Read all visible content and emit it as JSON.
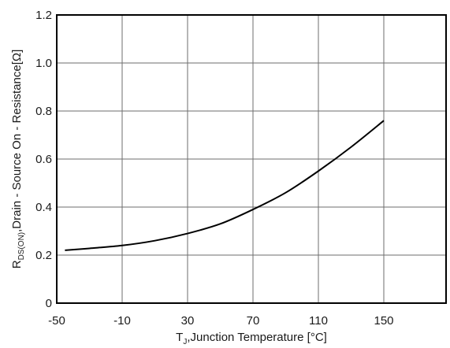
{
  "chart_data": {
    "type": "line",
    "xlabel": {
      "prefix": "T",
      "sub": "J",
      "rest": ",Junction Temperature [°C]"
    },
    "ylabel": {
      "prefix": "R",
      "sub": "DS(ON)",
      "rest": ",Drain - Source On - Resistance[Ω]"
    },
    "x_ticks": [
      -50,
      -10,
      30,
      70,
      110,
      150
    ],
    "x_tick_labels": [
      "-50",
      "-10",
      "30",
      "70",
      "110",
      "150"
    ],
    "y_ticks": [
      0,
      0.2,
      0.4,
      0.6,
      0.8,
      1.0,
      1.2
    ],
    "y_tick_labels": [
      "0",
      "0.2",
      "0.4",
      "0.6",
      "0.8",
      "1.0",
      "1.2"
    ],
    "xlim": [
      -50,
      190
    ],
    "ylim": [
      0,
      1.2
    ],
    "grid": true,
    "series": [
      {
        "x": [
          -45,
          -30,
          -10,
          10,
          30,
          50,
          70,
          90,
          110,
          130,
          150
        ],
        "y": [
          0.22,
          0.228,
          0.24,
          0.26,
          0.29,
          0.33,
          0.39,
          0.46,
          0.55,
          0.65,
          0.76
        ]
      }
    ]
  }
}
